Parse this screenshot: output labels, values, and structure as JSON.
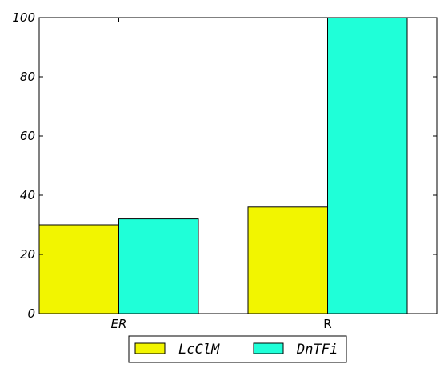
{
  "chart_data": {
    "type": "bar",
    "title": "",
    "xlabel": "",
    "ylabel": "",
    "categories": [
      "ER",
      "R"
    ],
    "category_italic": [
      true,
      false
    ],
    "ylim": [
      0,
      100
    ],
    "yticks": [
      0,
      20,
      40,
      60,
      80,
      100
    ],
    "grid": false,
    "legend_position": "bottom-center",
    "series": [
      {
        "name": "LcClM",
        "color": "#f2f500",
        "values": [
          30,
          36
        ]
      },
      {
        "name": "DnTFi",
        "color": "#1fffd8",
        "values": [
          32,
          100
        ]
      }
    ]
  }
}
